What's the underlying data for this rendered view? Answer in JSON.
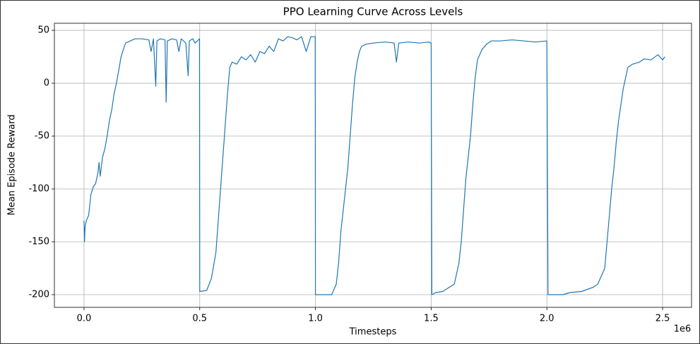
{
  "chart_data": {
    "type": "line",
    "title": "PPO Learning Curve Across Levels",
    "x_label": "Timesteps",
    "y_label": "Mean Episode Reward",
    "x_offset_label": "1e6",
    "xlim": [
      -128000,
      2625000
    ],
    "ylim": [
      -212,
      56.7
    ],
    "xticks": [
      {
        "value": 0,
        "label": "0.0"
      },
      {
        "value": 500000,
        "label": "0.5"
      },
      {
        "value": 1000000,
        "label": "1.0"
      },
      {
        "value": 1500000,
        "label": "1.5"
      },
      {
        "value": 2000000,
        "label": "2.0"
      },
      {
        "value": 2500000,
        "label": "2.5"
      }
    ],
    "yticks": [
      -200,
      -150,
      -100,
      -50,
      0,
      50
    ],
    "grid": true,
    "x": [
      0,
      2000,
      5000,
      10000,
      20000,
      30000,
      40000,
      50000,
      60000,
      65000,
      70000,
      80000,
      90000,
      100000,
      110000,
      120000,
      130000,
      140000,
      150000,
      160000,
      170000,
      180000,
      200000,
      220000,
      250000,
      280000,
      290000,
      300000,
      310000,
      315000,
      330000,
      350000,
      355000,
      360000,
      380000,
      400000,
      410000,
      420000,
      440000,
      450000,
      455000,
      470000,
      480000,
      499000,
      500000,
      530000,
      550000,
      570000,
      580000,
      590000,
      600000,
      610000,
      620000,
      630000,
      640000,
      660000,
      680000,
      700000,
      720000,
      740000,
      760000,
      780000,
      800000,
      820000,
      840000,
      860000,
      880000,
      900000,
      920000,
      940000,
      960000,
      980000,
      999000,
      1000000,
      1070000,
      1090000,
      1100000,
      1110000,
      1120000,
      1130000,
      1140000,
      1150000,
      1160000,
      1170000,
      1180000,
      1190000,
      1200000,
      1220000,
      1250000,
      1300000,
      1340000,
      1350000,
      1360000,
      1400000,
      1450000,
      1490000,
      1500000,
      1503000,
      1520000,
      1550000,
      1600000,
      1620000,
      1630000,
      1640000,
      1650000,
      1660000,
      1670000,
      1680000,
      1690000,
      1700000,
      1720000,
      1740000,
      1760000,
      1800000,
      1850000,
      1900000,
      1950000,
      2000000,
      2005000,
      2070000,
      2100000,
      2150000,
      2200000,
      2220000,
      2230000,
      2250000,
      2260000,
      2270000,
      2280000,
      2290000,
      2300000,
      2310000,
      2320000,
      2330000,
      2340000,
      2350000,
      2370000,
      2400000,
      2420000,
      2450000,
      2480000,
      2500000,
      2510000
    ],
    "series": [
      {
        "color": "#1f77b4",
        "values": [
          -130,
          -150,
          -135,
          -130,
          -125,
          -105,
          -98,
          -95,
          -85,
          -75,
          -88,
          -70,
          -62,
          -50,
          -35,
          -25,
          -10,
          0,
          12,
          25,
          32,
          38,
          40,
          42,
          42,
          41,
          30,
          42,
          -3,
          40,
          42,
          41,
          -18,
          40,
          42,
          41,
          30,
          42,
          38,
          7,
          40,
          42,
          38,
          42,
          -197,
          -196,
          -185,
          -160,
          -130,
          -100,
          -70,
          -40,
          -10,
          15,
          20,
          18,
          25,
          22,
          27,
          20,
          30,
          28,
          35,
          30,
          42,
          40,
          44,
          43,
          41,
          44,
          30,
          44,
          44,
          -200,
          -200,
          -190,
          -170,
          -140,
          -120,
          -100,
          -80,
          -50,
          -20,
          5,
          20,
          30,
          35,
          37,
          38,
          39,
          38,
          20,
          38,
          39,
          38,
          39,
          38,
          -200,
          -198,
          -197,
          -190,
          -170,
          -150,
          -120,
          -90,
          -70,
          -50,
          -20,
          5,
          22,
          32,
          37,
          40,
          40,
          41,
          40,
          39,
          40,
          -200,
          -200,
          -198,
          -197,
          -193,
          -190,
          -185,
          -175,
          -150,
          -125,
          -100,
          -80,
          -55,
          -35,
          -20,
          -5,
          5,
          15,
          18,
          20,
          23,
          22,
          27,
          22,
          25
        ]
      }
    ]
  }
}
